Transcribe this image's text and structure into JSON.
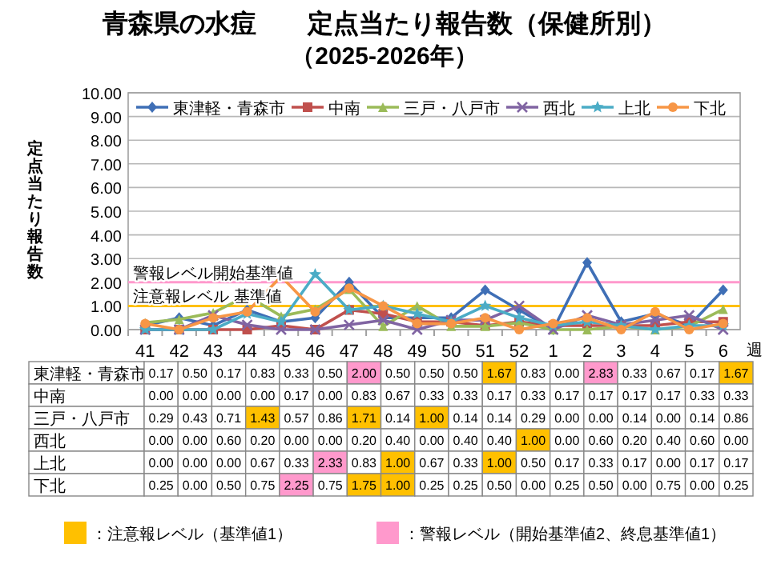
{
  "chart_data": {
    "type": "line",
    "title": "青森県の水痘　　定点当たり報告数（保健所別）",
    "subtitle": "（2025-2026年）",
    "ylabel": "定点当たり報告数",
    "xlabel": "週",
    "categories": [
      "41",
      "42",
      "43",
      "44",
      "45",
      "46",
      "47",
      "48",
      "49",
      "50",
      "51",
      "52",
      "1",
      "2",
      "3",
      "4",
      "5",
      "6"
    ],
    "ylim": [
      0,
      10
    ],
    "yticks": [
      {
        "value": 0,
        "label": "0.00"
      },
      {
        "value": 1,
        "label": "1.00"
      },
      {
        "value": 2,
        "label": "2.00"
      },
      {
        "value": 3,
        "label": "3.00"
      },
      {
        "value": 4,
        "label": "4.00"
      },
      {
        "value": 5,
        "label": "5.00"
      },
      {
        "value": 6,
        "label": "6.00"
      },
      {
        "value": 7,
        "label": "7.00"
      },
      {
        "value": 8,
        "label": "8.00"
      },
      {
        "value": 9,
        "label": "9.00"
      },
      {
        "value": 10,
        "label": "10.00"
      }
    ],
    "grid": "y",
    "legend": "top",
    "series": [
      {
        "name": "東津軽・青森市",
        "color": "#3f6fb6",
        "marker": "diamond",
        "values": [
          0.17,
          0.5,
          0.17,
          0.83,
          0.33,
          0.5,
          2.0,
          0.5,
          0.5,
          0.5,
          1.67,
          0.83,
          0.0,
          2.83,
          0.33,
          0.67,
          0.17,
          1.67
        ],
        "value_labels": [
          "0.17",
          "0.50",
          "0.17",
          "0.83",
          "0.33",
          "0.50",
          "2.00",
          "0.50",
          "0.50",
          "0.50",
          "1.67",
          "0.83",
          "0.00",
          "2.83",
          "0.33",
          "0.67",
          "0.17",
          "1.67"
        ]
      },
      {
        "name": "中南",
        "color": "#c0504d",
        "marker": "square",
        "values": [
          0.0,
          0.0,
          0.0,
          0.0,
          0.17,
          0.0,
          0.83,
          0.67,
          0.33,
          0.33,
          0.17,
          0.33,
          0.17,
          0.17,
          0.17,
          0.17,
          0.33,
          0.33
        ],
        "value_labels": [
          "0.00",
          "0.00",
          "0.00",
          "0.00",
          "0.17",
          "0.00",
          "0.83",
          "0.67",
          "0.33",
          "0.33",
          "0.17",
          "0.33",
          "0.17",
          "0.17",
          "0.17",
          "0.17",
          "0.33",
          "0.33"
        ]
      },
      {
        "name": "三戸・八戸市",
        "color": "#9bbb59",
        "marker": "triangle",
        "values": [
          0.29,
          0.43,
          0.71,
          1.43,
          0.57,
          0.86,
          1.71,
          0.14,
          1.0,
          0.14,
          0.14,
          0.29,
          0.0,
          0.0,
          0.14,
          0.0,
          0.14,
          0.86
        ],
        "value_labels": [
          "0.29",
          "0.43",
          "0.71",
          "1.43",
          "0.57",
          "0.86",
          "1.71",
          "0.14",
          "1.00",
          "0.14",
          "0.14",
          "0.29",
          "0.00",
          "0.00",
          "0.14",
          "0.00",
          "0.14",
          "0.86"
        ]
      },
      {
        "name": "西北",
        "color": "#8064a2",
        "marker": "cross",
        "values": [
          0.0,
          0.0,
          0.6,
          0.2,
          0.0,
          0.0,
          0.2,
          0.4,
          0.0,
          0.4,
          0.4,
          1.0,
          0.0,
          0.6,
          0.2,
          0.4,
          0.6,
          0.0
        ],
        "value_labels": [
          "0.00",
          "0.00",
          "0.60",
          "0.20",
          "0.00",
          "0.00",
          "0.20",
          "0.40",
          "0.00",
          "0.40",
          "0.40",
          "1.00",
          "0.00",
          "0.60",
          "0.20",
          "0.40",
          "0.60",
          "0.00"
        ]
      },
      {
        "name": "上北",
        "color": "#4bacc6",
        "marker": "star",
        "values": [
          0.0,
          0.0,
          0.0,
          0.67,
          0.33,
          2.33,
          0.83,
          1.0,
          0.67,
          0.33,
          1.0,
          0.5,
          0.17,
          0.33,
          0.17,
          0.0,
          0.17,
          0.17
        ],
        "value_labels": [
          "0.00",
          "0.00",
          "0.00",
          "0.67",
          "0.33",
          "2.33",
          "0.83",
          "1.00",
          "0.67",
          "0.33",
          "1.00",
          "0.50",
          "0.17",
          "0.33",
          "0.17",
          "0.00",
          "0.17",
          "0.17"
        ]
      },
      {
        "name": "下北",
        "color": "#f79646",
        "marker": "circle",
        "values": [
          0.25,
          0.0,
          0.5,
          0.75,
          2.25,
          0.75,
          1.75,
          1.0,
          0.25,
          0.25,
          0.5,
          0.0,
          0.25,
          0.5,
          0.0,
          0.75,
          0.0,
          0.25
        ],
        "value_labels": [
          "0.25",
          "0.00",
          "0.50",
          "0.75",
          "2.25",
          "0.75",
          "1.75",
          "1.00",
          "0.25",
          "0.25",
          "0.50",
          "0.00",
          "0.25",
          "0.50",
          "0.00",
          "0.75",
          "0.00",
          "0.25"
        ]
      }
    ],
    "ref_lines": [
      {
        "axis": "y",
        "value": 2,
        "label": "警報レベル開始基準値",
        "color": "#ff99cc"
      },
      {
        "axis": "y",
        "value": 1,
        "label": "注意報レベル 基準値",
        "color": "#ffc000"
      }
    ],
    "annotations": [
      "：注意報レベル（基準値1）",
      "：警報レベル（開始基準値2、終息基準値1）"
    ]
  }
}
